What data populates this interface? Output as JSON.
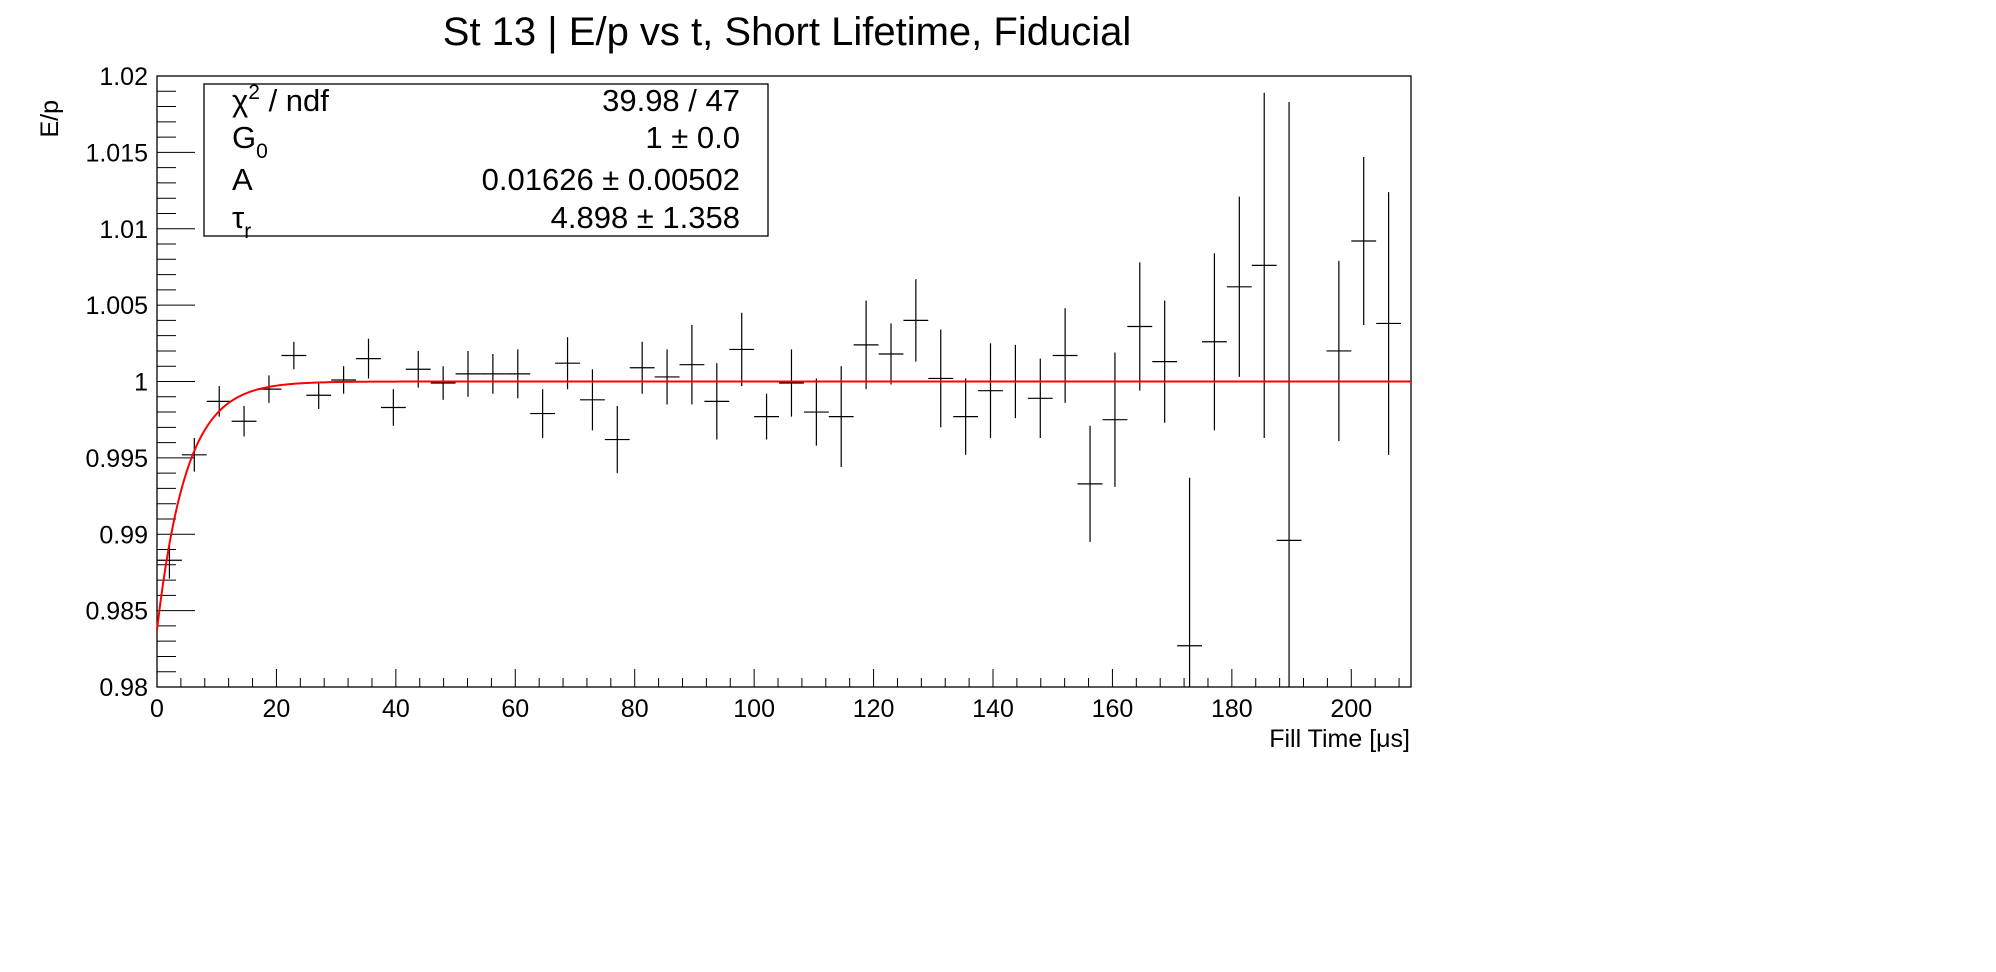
{
  "chart_data": {
    "type": "scatter",
    "title": "St 13 | E/p vs t, Short Lifetime, Fiducial",
    "xlabel": "Fill Time [μs]",
    "ylabel": "E/p",
    "xlim": [
      0,
      210
    ],
    "ylim": [
      0.98,
      1.02
    ],
    "x_ticks": [
      0,
      20,
      40,
      60,
      80,
      100,
      120,
      140,
      160,
      180,
      200
    ],
    "x_tick_labels": [
      "0",
      "20",
      "40",
      "60",
      "80",
      "100",
      "120",
      "140",
      "160",
      "180",
      "200"
    ],
    "y_ticks": [
      0.98,
      0.985,
      0.99,
      0.995,
      1.0,
      1.005,
      1.01,
      1.015,
      1.02
    ],
    "y_tick_labels": [
      "0.98",
      "0.985",
      "0.99",
      "0.995",
      "1",
      "1.005",
      "1.01",
      "1.015",
      "1.02"
    ],
    "grid": false,
    "legend": "none",
    "series": [
      {
        "marker": "cross",
        "color": "#000000",
        "x_halfwidth": 2.08,
        "points": [
          {
            "x": 2.08,
            "y": 0.9883,
            "err": 0.0012
          },
          {
            "x": 6.25,
            "y": 0.9952,
            "err": 0.0011
          },
          {
            "x": 10.42,
            "y": 0.9987,
            "err": 0.001
          },
          {
            "x": 14.58,
            "y": 0.9974,
            "err": 0.001
          },
          {
            "x": 18.75,
            "y": 0.9995,
            "err": 0.0009
          },
          {
            "x": 22.92,
            "y": 1.0017,
            "err": 0.0009
          },
          {
            "x": 27.08,
            "y": 0.9991,
            "err": 0.0009
          },
          {
            "x": 31.25,
            "y": 1.0001,
            "err": 0.0009
          },
          {
            "x": 35.42,
            "y": 1.0015,
            "err": 0.0013
          },
          {
            "x": 39.58,
            "y": 0.9983,
            "err": 0.0012
          },
          {
            "x": 43.75,
            "y": 1.0008,
            "err": 0.0012
          },
          {
            "x": 47.92,
            "y": 0.9999,
            "err": 0.0011
          },
          {
            "x": 52.08,
            "y": 1.0005,
            "err": 0.0015
          },
          {
            "x": 56.25,
            "y": 1.0005,
            "err": 0.0013
          },
          {
            "x": 60.42,
            "y": 1.0005,
            "err": 0.0016
          },
          {
            "x": 64.58,
            "y": 0.9979,
            "err": 0.0016
          },
          {
            "x": 68.75,
            "y": 1.0012,
            "err": 0.0017
          },
          {
            "x": 72.92,
            "y": 0.9988,
            "err": 0.002
          },
          {
            "x": 77.08,
            "y": 0.9962,
            "err": 0.0022
          },
          {
            "x": 81.25,
            "y": 1.0009,
            "err": 0.0017
          },
          {
            "x": 85.42,
            "y": 1.0003,
            "err": 0.0018
          },
          {
            "x": 89.58,
            "y": 1.0011,
            "err": 0.0026
          },
          {
            "x": 93.75,
            "y": 0.9987,
            "err": 0.0025
          },
          {
            "x": 97.92,
            "y": 1.0021,
            "err": 0.0024
          },
          {
            "x": 102.08,
            "y": 0.9977,
            "err": 0.0015
          },
          {
            "x": 106.25,
            "y": 0.9999,
            "err": 0.0022
          },
          {
            "x": 110.42,
            "y": 0.998,
            "err": 0.0022
          },
          {
            "x": 114.58,
            "y": 0.9977,
            "err": 0.0033
          },
          {
            "x": 118.75,
            "y": 1.0024,
            "err": 0.0029
          },
          {
            "x": 122.92,
            "y": 1.0018,
            "err": 0.002
          },
          {
            "x": 127.08,
            "y": 1.004,
            "err": 0.0027
          },
          {
            "x": 131.25,
            "y": 1.0002,
            "err": 0.0032
          },
          {
            "x": 135.42,
            "y": 0.9977,
            "err": 0.0025
          },
          {
            "x": 139.58,
            "y": 0.9994,
            "err": 0.0031
          },
          {
            "x": 143.75,
            "y": 1.0,
            "err": 0.0024
          },
          {
            "x": 147.92,
            "y": 0.9989,
            "err": 0.0026
          },
          {
            "x": 152.08,
            "y": 1.0017,
            "err": 0.0031
          },
          {
            "x": 156.25,
            "y": 0.9933,
            "err": 0.0038
          },
          {
            "x": 160.42,
            "y": 0.9975,
            "err": 0.0044
          },
          {
            "x": 164.58,
            "y": 1.0036,
            "err": 0.0042
          },
          {
            "x": 168.75,
            "y": 1.0013,
            "err": 0.004
          },
          {
            "x": 172.92,
            "y": 0.9827,
            "err": 0.011
          },
          {
            "x": 177.08,
            "y": 1.0026,
            "err": 0.0058
          },
          {
            "x": 181.25,
            "y": 1.0062,
            "err": 0.0059
          },
          {
            "x": 185.42,
            "y": 1.0076,
            "err": 0.0113
          },
          {
            "x": 189.58,
            "y": 0.9896,
            "err": 0.0287
          },
          {
            "x": 197.92,
            "y": 1.002,
            "err": 0.0059
          },
          {
            "x": 202.08,
            "y": 1.0092,
            "err": 0.0055
          },
          {
            "x": 206.25,
            "y": 1.0038,
            "err": 0.0086
          }
        ]
      },
      {
        "type": "line",
        "color": "#ff0000",
        "formula": "G0 * (1 - A * exp(-t / tau_r))",
        "G0": 1.0,
        "A": 0.01626,
        "tau_r": 4.898,
        "x_range": [
          0,
          210
        ]
      }
    ],
    "stats_box": {
      "rows": [
        {
          "sym": "χ",
          "sup": "2",
          "rest": " / ndf",
          "value": "39.98 / 47"
        },
        {
          "sym": "G",
          "sub": "0",
          "value": "1 ± 0.0"
        },
        {
          "sym": "A",
          "value": "0.01626 ± 0.00502"
        },
        {
          "sym": "τ",
          "sub": "r",
          "value": "4.898 ± 1.358"
        }
      ]
    }
  }
}
